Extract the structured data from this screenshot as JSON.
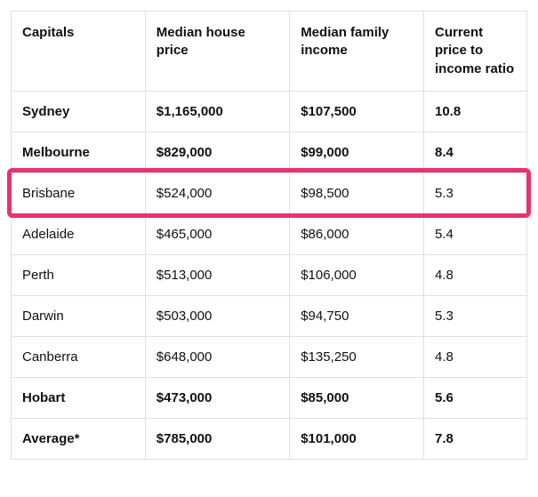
{
  "table": {
    "type": "table",
    "columns": [
      "Capitals",
      "Median house price",
      "Median family income",
      "Current price to income ratio"
    ],
    "column_widths_pct": [
      26,
      28,
      26,
      20
    ],
    "rows": [
      {
        "cells": [
          "Sydney",
          "$1,165,000",
          "$107,500",
          "10.8"
        ],
        "bold": true
      },
      {
        "cells": [
          "Melbourne",
          "$829,000",
          "$99,000",
          "8.4"
        ],
        "bold": true
      },
      {
        "cells": [
          "Brisbane",
          "$524,000",
          "$98,500",
          "5.3"
        ],
        "bold": false,
        "highlighted": true
      },
      {
        "cells": [
          "Adelaide",
          "$465,000",
          "$86,000",
          "5.4"
        ],
        "bold": false
      },
      {
        "cells": [
          "Perth",
          "$513,000",
          "$106,000",
          "4.8"
        ],
        "bold": false
      },
      {
        "cells": [
          "Darwin",
          "$503,000",
          "$94,750",
          "5.3"
        ],
        "bold": false
      },
      {
        "cells": [
          "Canberra",
          "$648,000",
          "$135,250",
          "4.8"
        ],
        "bold": false
      },
      {
        "cells": [
          "Hobart",
          "$473,000",
          "$85,000",
          "5.6"
        ],
        "bold": true
      },
      {
        "cells": [
          "Average*",
          "$785,000",
          "$101,000",
          "7.8"
        ],
        "bold": true
      }
    ],
    "highlight_color": "#e8336d",
    "border_color": "#e0e0e0",
    "text_color": "#111111",
    "background_color": "#ffffff",
    "header_fontsize": 15,
    "cell_fontsize": 15
  }
}
